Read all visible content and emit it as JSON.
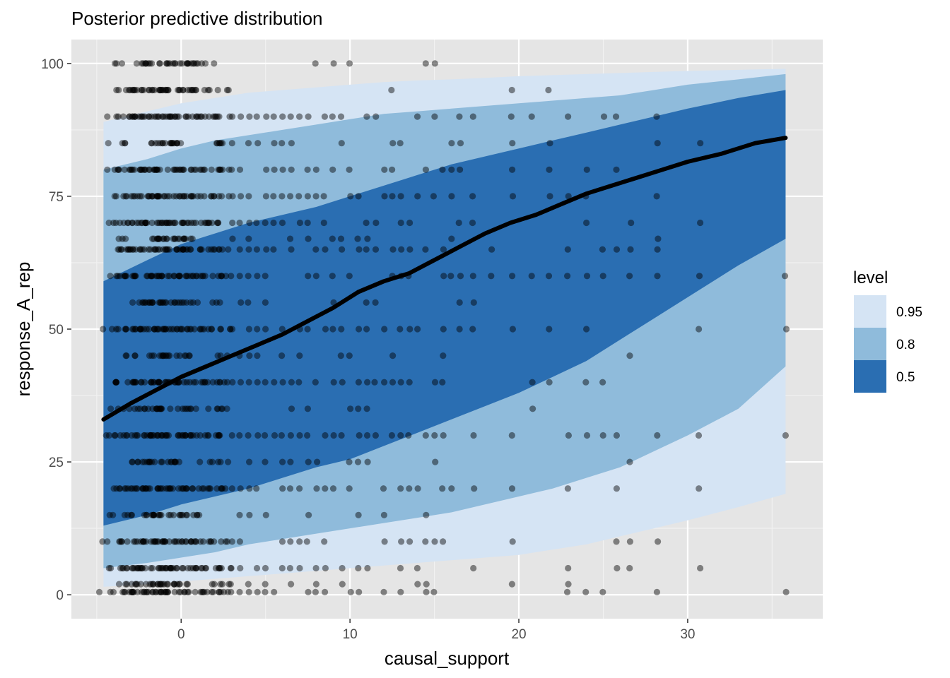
{
  "chart_data": {
    "type": "area",
    "title": "Posterior predictive distribution",
    "xlabel": "causal_support",
    "ylabel": "response_A_rep",
    "xlim": [
      -6.5,
      38
    ],
    "ylim": [
      -4.5,
      104.5
    ],
    "x_ticks": [
      0,
      10,
      20,
      30
    ],
    "y_ticks": [
      0,
      25,
      50,
      75,
      100
    ],
    "grid": true,
    "legend_position": "right",
    "legend_title": "level",
    "colors": {
      "panel": "#e5e5e5",
      "grid_major": "#ffffff",
      "level_0_95": "#d5e4f4",
      "level_0_8": "#8fbbdb",
      "level_0_5": "#2a6eb2",
      "mean_line": "#000000",
      "points": "#000000"
    },
    "levels": [
      {
        "label": "0.95",
        "color": "#d5e4f4"
      },
      {
        "label": "0.8",
        "color": "#8fbbdb"
      },
      {
        "label": "0.5",
        "color": "#2a6eb2"
      }
    ],
    "ribbons": {
      "x": [
        -4.6,
        -2,
        0,
        2,
        4,
        6,
        8,
        10,
        12,
        14,
        16,
        18,
        20,
        22,
        24,
        26,
        28,
        30,
        33,
        35.8
      ],
      "level_0_95": {
        "lower": [
          1.5,
          2,
          2.5,
          3,
          3.5,
          4,
          4.5,
          5,
          5.5,
          6,
          6.5,
          7,
          7.5,
          8.5,
          9.5,
          11,
          12.5,
          14,
          16.5,
          19
        ],
        "upper": [
          89,
          91,
          92.5,
          93.5,
          94.5,
          95,
          95.5,
          96,
          96.5,
          96.8,
          97,
          97.3,
          97.6,
          97.8,
          98,
          98.2,
          98.4,
          98.6,
          98.8,
          99
        ]
      },
      "level_0_8": {
        "lower": [
          5,
          6,
          7,
          8,
          9.5,
          10.5,
          11.5,
          12.5,
          13.5,
          14.5,
          15.5,
          17,
          18.5,
          20,
          22,
          24,
          27,
          30,
          35,
          43
        ]
      },
      "level_0_8_upper": [
        80,
        82,
        84,
        85.5,
        86.5,
        87.5,
        88.5,
        89.5,
        90.5,
        91,
        91.5,
        92,
        92.5,
        93,
        93.5,
        94,
        95,
        96,
        97,
        98
      ],
      "level_0_5": {
        "lower": [
          13,
          15,
          17,
          18.5,
          20,
          22,
          24,
          25.5,
          28,
          30.5,
          33,
          35.5,
          38,
          41,
          44,
          48,
          52,
          56,
          62,
          67
        ],
        "upper": [
          59,
          63,
          66,
          68,
          70,
          71.5,
          73,
          75,
          77,
          79,
          81,
          82.5,
          84,
          85.5,
          87,
          88.5,
          90,
          91.5,
          93.5,
          95
        ]
      }
    },
    "mean_line": {
      "x": [
        -4.6,
        -3,
        -1.5,
        0,
        1.5,
        3,
        4.5,
        6,
        7.5,
        9,
        10.5,
        12,
        13.5,
        15,
        16.5,
        18,
        19.5,
        21,
        22.5,
        24,
        25.5,
        27,
        28.5,
        30,
        32,
        34,
        35.8
      ],
      "y": [
        33,
        36,
        38.5,
        41,
        43,
        45,
        47,
        49,
        51.5,
        54,
        57,
        59,
        60.5,
        63,
        65.5,
        68,
        70,
        71.5,
        73.5,
        75.5,
        77,
        78.5,
        80,
        81.5,
        83,
        85,
        86
      ]
    },
    "points_note": "",
    "point_columns": {
      "x": [
        -4.6,
        -4,
        -3.5,
        -3,
        -2.5,
        -2,
        -1.5,
        -1,
        -0.5,
        0,
        0.5,
        1,
        1.5,
        2,
        2.5,
        3,
        3.5,
        4,
        4.5,
        5,
        5.5,
        6,
        6.5,
        7,
        7.5,
        8,
        8.5,
        9,
        9.5,
        10,
        10.5,
        11,
        11.5,
        12,
        12.5,
        13,
        13.5,
        14,
        14.5,
        15,
        15.5,
        16,
        16.5,
        17.3,
        18.4,
        19.6,
        20.8,
        21.8,
        22.9,
        24,
        25,
        25.8,
        26.6,
        28.2,
        30.7,
        35.8
      ],
      "count_scale": [
        5,
        8,
        12,
        14,
        16,
        18,
        18,
        18,
        16,
        16,
        14,
        13,
        12,
        11,
        10,
        9,
        9,
        8,
        7,
        7,
        6,
        6,
        5,
        5,
        5,
        5,
        5,
        4,
        4,
        4,
        4,
        4,
        4,
        4,
        4,
        4,
        3,
        3,
        3,
        3,
        3,
        3,
        3,
        3,
        3,
        3,
        3,
        2,
        2,
        2,
        2,
        2,
        2,
        2,
        2,
        2
      ]
    },
    "point_y_values": [
      0.5,
      2,
      5,
      10,
      15,
      20,
      25,
      30,
      35,
      40,
      45,
      50,
      55,
      60,
      65,
      67,
      70,
      75,
      80,
      85,
      90,
      95,
      100
    ]
  }
}
